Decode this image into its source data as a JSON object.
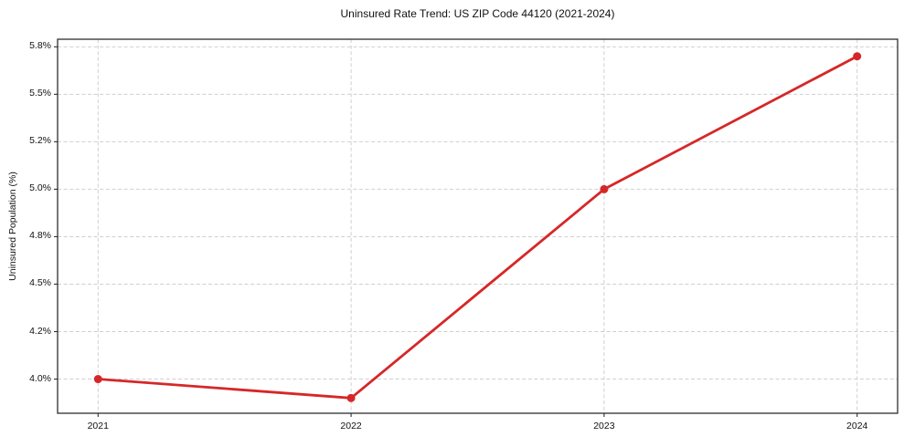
{
  "chart_data": {
    "type": "line",
    "title": "Uninsured Rate Trend: US ZIP Code 44120 (2021-2024)",
    "xlabel": "",
    "ylabel": "Uninsured Population (%)",
    "categories": [
      "2021",
      "2022",
      "2023",
      "2024"
    ],
    "values": [
      4.0,
      3.9,
      5.0,
      5.7
    ],
    "yticks": [
      {
        "value": 4.0,
        "label": "4.0%"
      },
      {
        "value": 4.25,
        "label": "4.2%"
      },
      {
        "value": 4.5,
        "label": "4.5%"
      },
      {
        "value": 4.75,
        "label": "4.8%"
      },
      {
        "value": 5.0,
        "label": "5.0%"
      },
      {
        "value": 5.25,
        "label": "5.2%"
      },
      {
        "value": 5.5,
        "label": "5.5%"
      },
      {
        "value": 5.75,
        "label": "5.8%"
      }
    ],
    "ylim": [
      3.82,
      5.79
    ],
    "grid": true,
    "grid_style": "dashed",
    "legend": "none",
    "marker": "circle",
    "colors": {
      "line": "#d62728",
      "grid": "#cfcfcf",
      "axis": "#2e2e2e",
      "text": "#111111",
      "background": "#ffffff"
    }
  }
}
